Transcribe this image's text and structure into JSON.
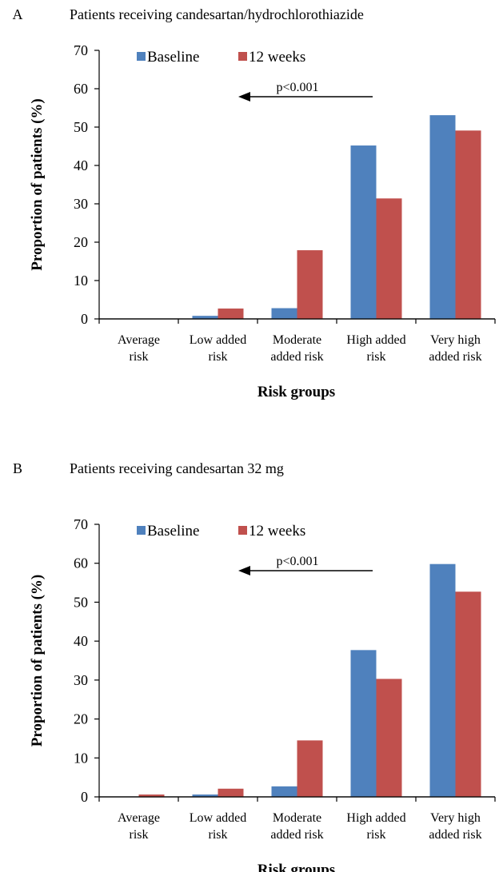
{
  "colors": {
    "baseline": "#4F81BD",
    "weeks12": "#C0504D",
    "axis": "#000000"
  },
  "chart_data": [
    {
      "type": "bar",
      "panel_label": "A",
      "title": "Patients receiving candesartan/hydrochlorothiazide",
      "xlabel": "Risk groups",
      "ylabel": "Proportion of patients (%)",
      "ylim": [
        0,
        70
      ],
      "yticks": [
        "0",
        "10",
        "20",
        "30",
        "40",
        "50",
        "60",
        "70"
      ],
      "categories": [
        [
          "Average",
          "risk"
        ],
        [
          "Low added",
          "risk"
        ],
        [
          "Moderate",
          "added risk"
        ],
        [
          "High added",
          "risk"
        ],
        [
          "Very high",
          "added risk"
        ]
      ],
      "series": [
        {
          "name": "Baseline",
          "values": [
            0,
            0.8,
            2.8,
            45.2,
            53.1
          ]
        },
        {
          "name": "12 weeks",
          "values": [
            0,
            2.7,
            17.9,
            31.4,
            49.1
          ]
        }
      ],
      "annotation": "p<0.001",
      "legend_position": "top-left"
    },
    {
      "type": "bar",
      "panel_label": "B",
      "title": "Patients receiving candesartan 32 mg",
      "xlabel": "Risk groups",
      "ylabel": "Proportion of patients (%)",
      "ylim": [
        0,
        70
      ],
      "yticks": [
        "0",
        "10",
        "20",
        "30",
        "40",
        "50",
        "60",
        "70"
      ],
      "categories": [
        [
          "Average",
          "risk"
        ],
        [
          "Low added",
          "risk"
        ],
        [
          "Moderate",
          "added risk"
        ],
        [
          "High added",
          "risk"
        ],
        [
          "Very high",
          "added risk"
        ]
      ],
      "series": [
        {
          "name": "Baseline",
          "values": [
            0,
            0.6,
            2.7,
            37.7,
            59.8
          ]
        },
        {
          "name": "12 weeks",
          "values": [
            0.6,
            2.1,
            14.5,
            30.3,
            52.7
          ]
        }
      ],
      "annotation": "p<0.001",
      "legend_position": "top-left"
    }
  ]
}
